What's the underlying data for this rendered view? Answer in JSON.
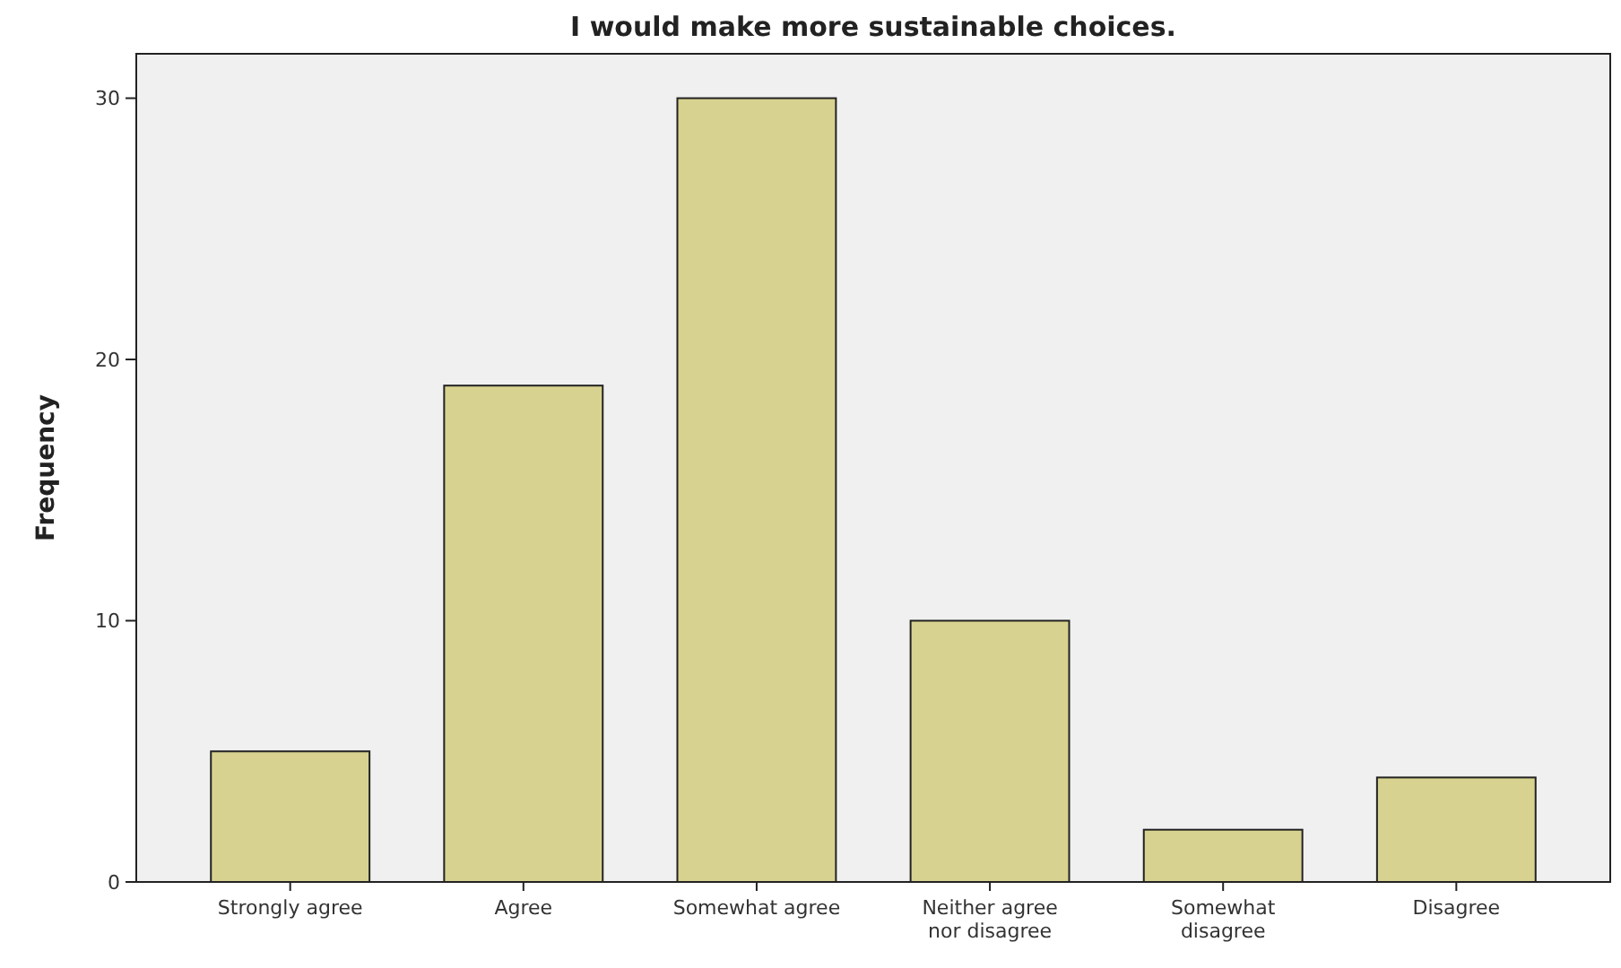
{
  "chart_data": {
    "type": "bar",
    "title": "I would make more sustainable choices.",
    "ylabel": "Frequency",
    "categories": [
      "Strongly agree",
      "Agree",
      "Somewhat agree",
      "Neither agree nor disagree",
      "Somewhat disagree",
      "Disagree"
    ],
    "values": [
      5,
      19,
      30,
      10,
      2,
      4
    ],
    "color": "#d7d28f",
    "ylim": [
      0,
      31.7
    ],
    "yticks": [
      0,
      10,
      20,
      30
    ]
  }
}
